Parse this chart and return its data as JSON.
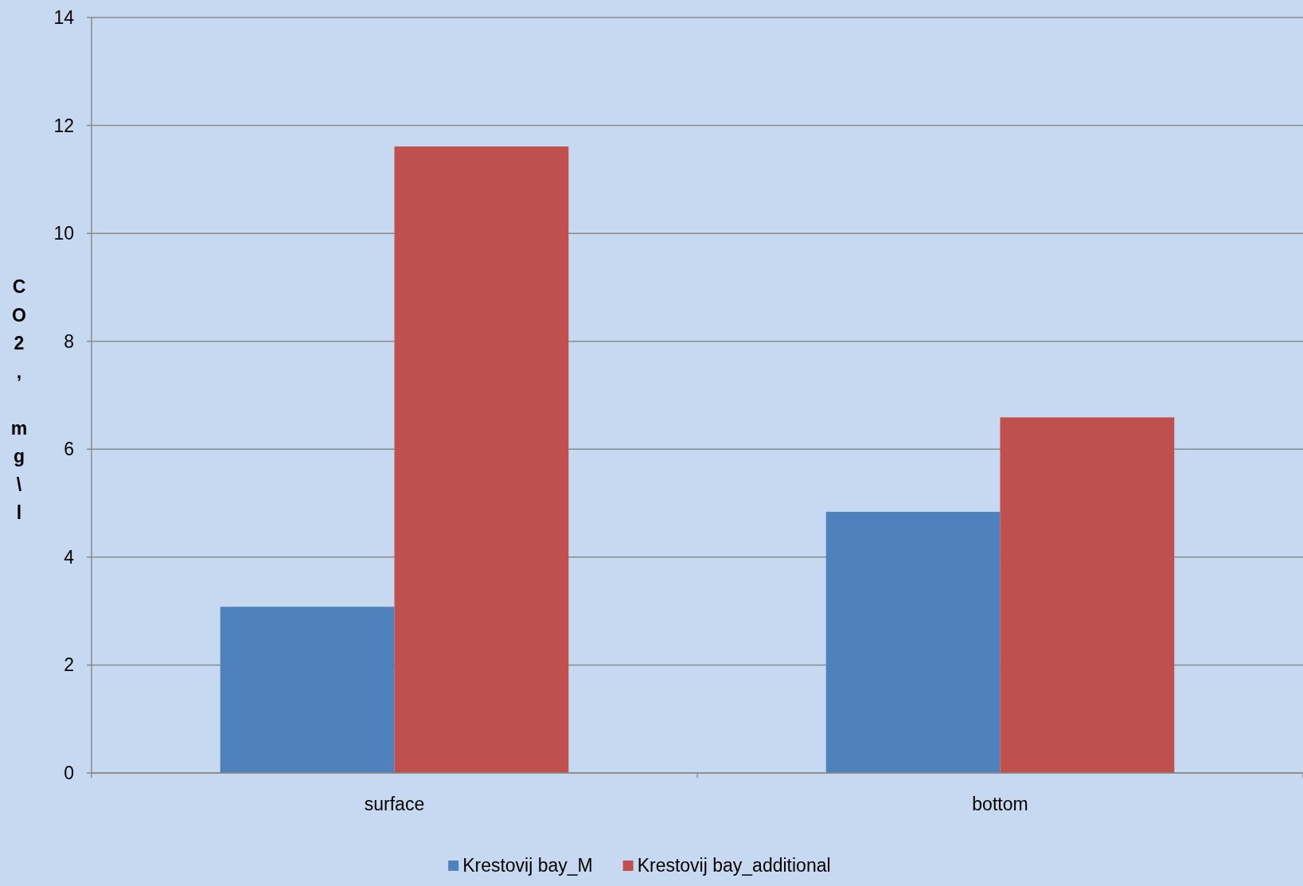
{
  "chart_data": {
    "type": "bar",
    "ylabel": "CO2, mg\\l",
    "categories": [
      "surface",
      "bottom"
    ],
    "series": [
      {
        "name": "Krestovij bay_M",
        "color": "#4f81bd",
        "values": [
          3.08,
          4.84
        ]
      },
      {
        "name": "Krestovij bay_additional",
        "color": "#c0504d",
        "values": [
          11.61,
          6.59
        ]
      }
    ],
    "ylim": [
      0,
      14
    ],
    "yticks": [
      0,
      2,
      4,
      6,
      8,
      10,
      12,
      14
    ],
    "grid": "y",
    "legend": "bottom"
  }
}
